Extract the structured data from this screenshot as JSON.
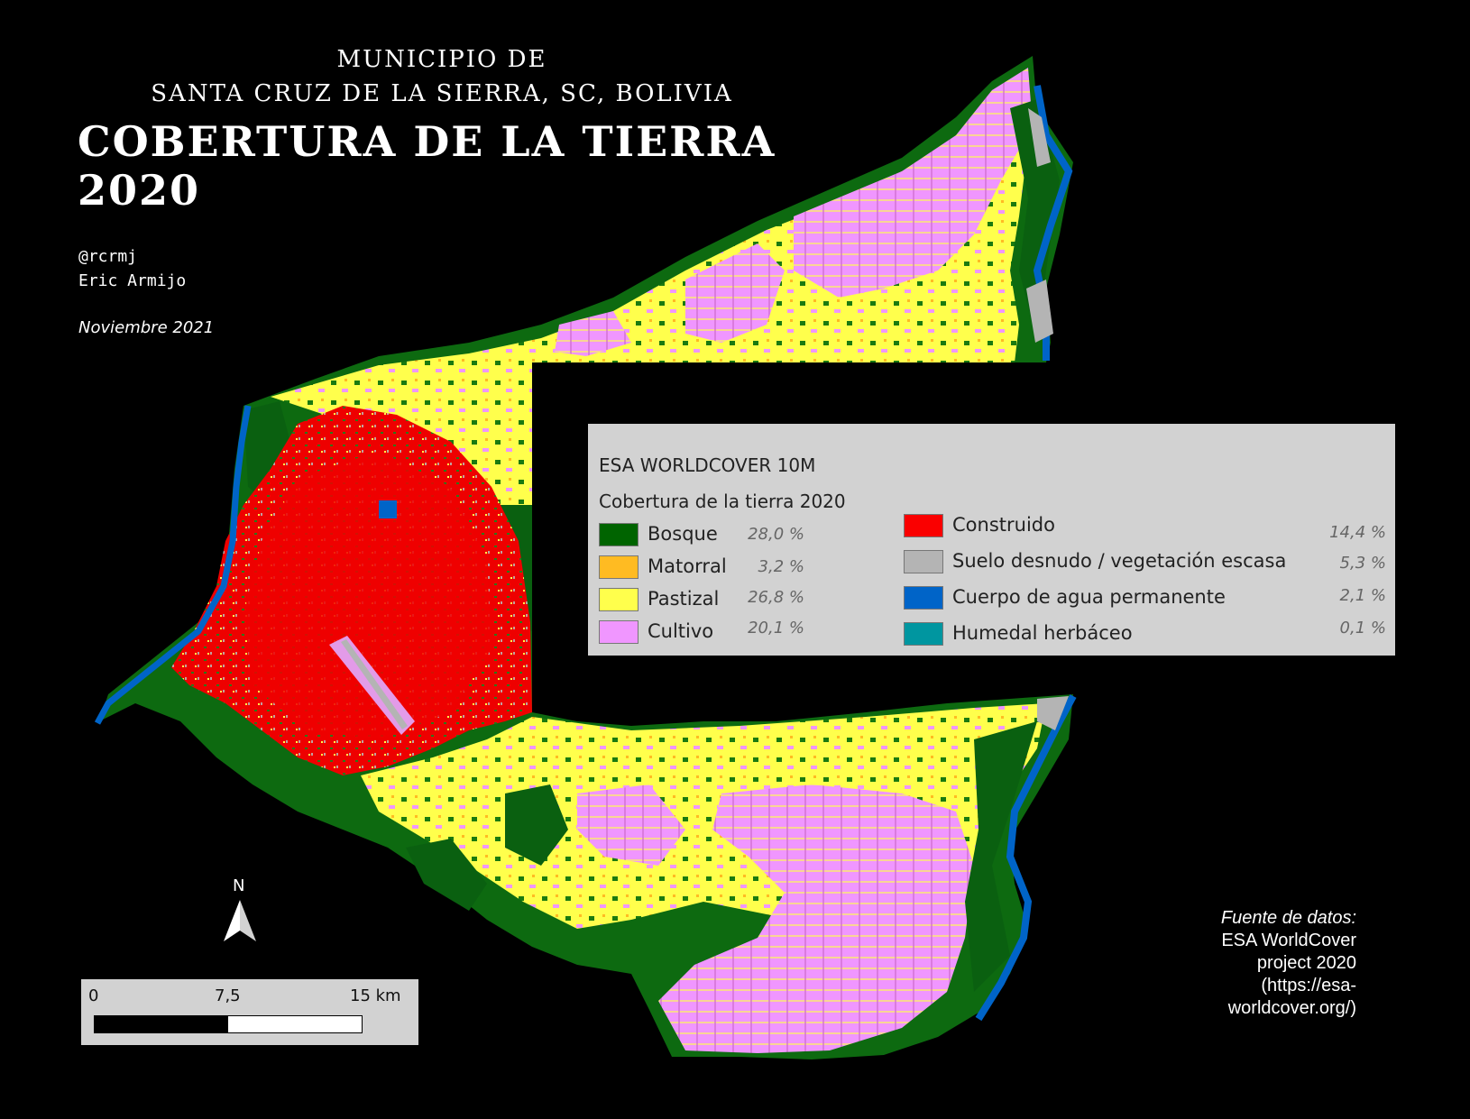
{
  "title": {
    "line1": "MUNICIPIO DE",
    "line2": "SANTA CRUZ DE LA SIERRA, SC, BOLIVIA",
    "main": "COBERTURA DE LA TIERRA 2020"
  },
  "author": {
    "handle": "@rcrmj",
    "name": "Eric Armijo"
  },
  "date": "Noviembre 2021",
  "legend": {
    "title": "ESA WORLDCOVER 10M",
    "subtitle": "Cobertura de la tierra 2020",
    "items": [
      {
        "label": "Bosque",
        "percent": "28,0 %",
        "color": "#006400"
      },
      {
        "label": "Matorral",
        "percent": "3,2 %",
        "color": "#ffbb22"
      },
      {
        "label": "Pastizal",
        "percent": "26,8 %",
        "color": "#ffff4c"
      },
      {
        "label": "Cultivo",
        "percent": "20,1 %",
        "color": "#f096ff"
      },
      {
        "label": "Construido",
        "percent": "14,4 %",
        "color": "#fa0000"
      },
      {
        "label": "Suelo desnudo / vegetación escasa",
        "percent": "5,3 %",
        "color": "#b4b4b4"
      },
      {
        "label": "Cuerpo de agua permanente",
        "percent": "2,1 %",
        "color": "#0064c8"
      },
      {
        "label": "Humedal herbáceo",
        "percent": "0,1 %",
        "color": "#0096a0"
      }
    ]
  },
  "north_label": "N",
  "scale": {
    "labels": [
      "0",
      "7,5",
      "15 km"
    ]
  },
  "source": {
    "heading": "Fuente de datos:",
    "lines": [
      "ESA WorldCover",
      "project 2020",
      "(https://esa-",
      "worldcover.org/)"
    ]
  },
  "map_colors": {
    "background": "#000000",
    "frame": "#d2d2d2"
  }
}
